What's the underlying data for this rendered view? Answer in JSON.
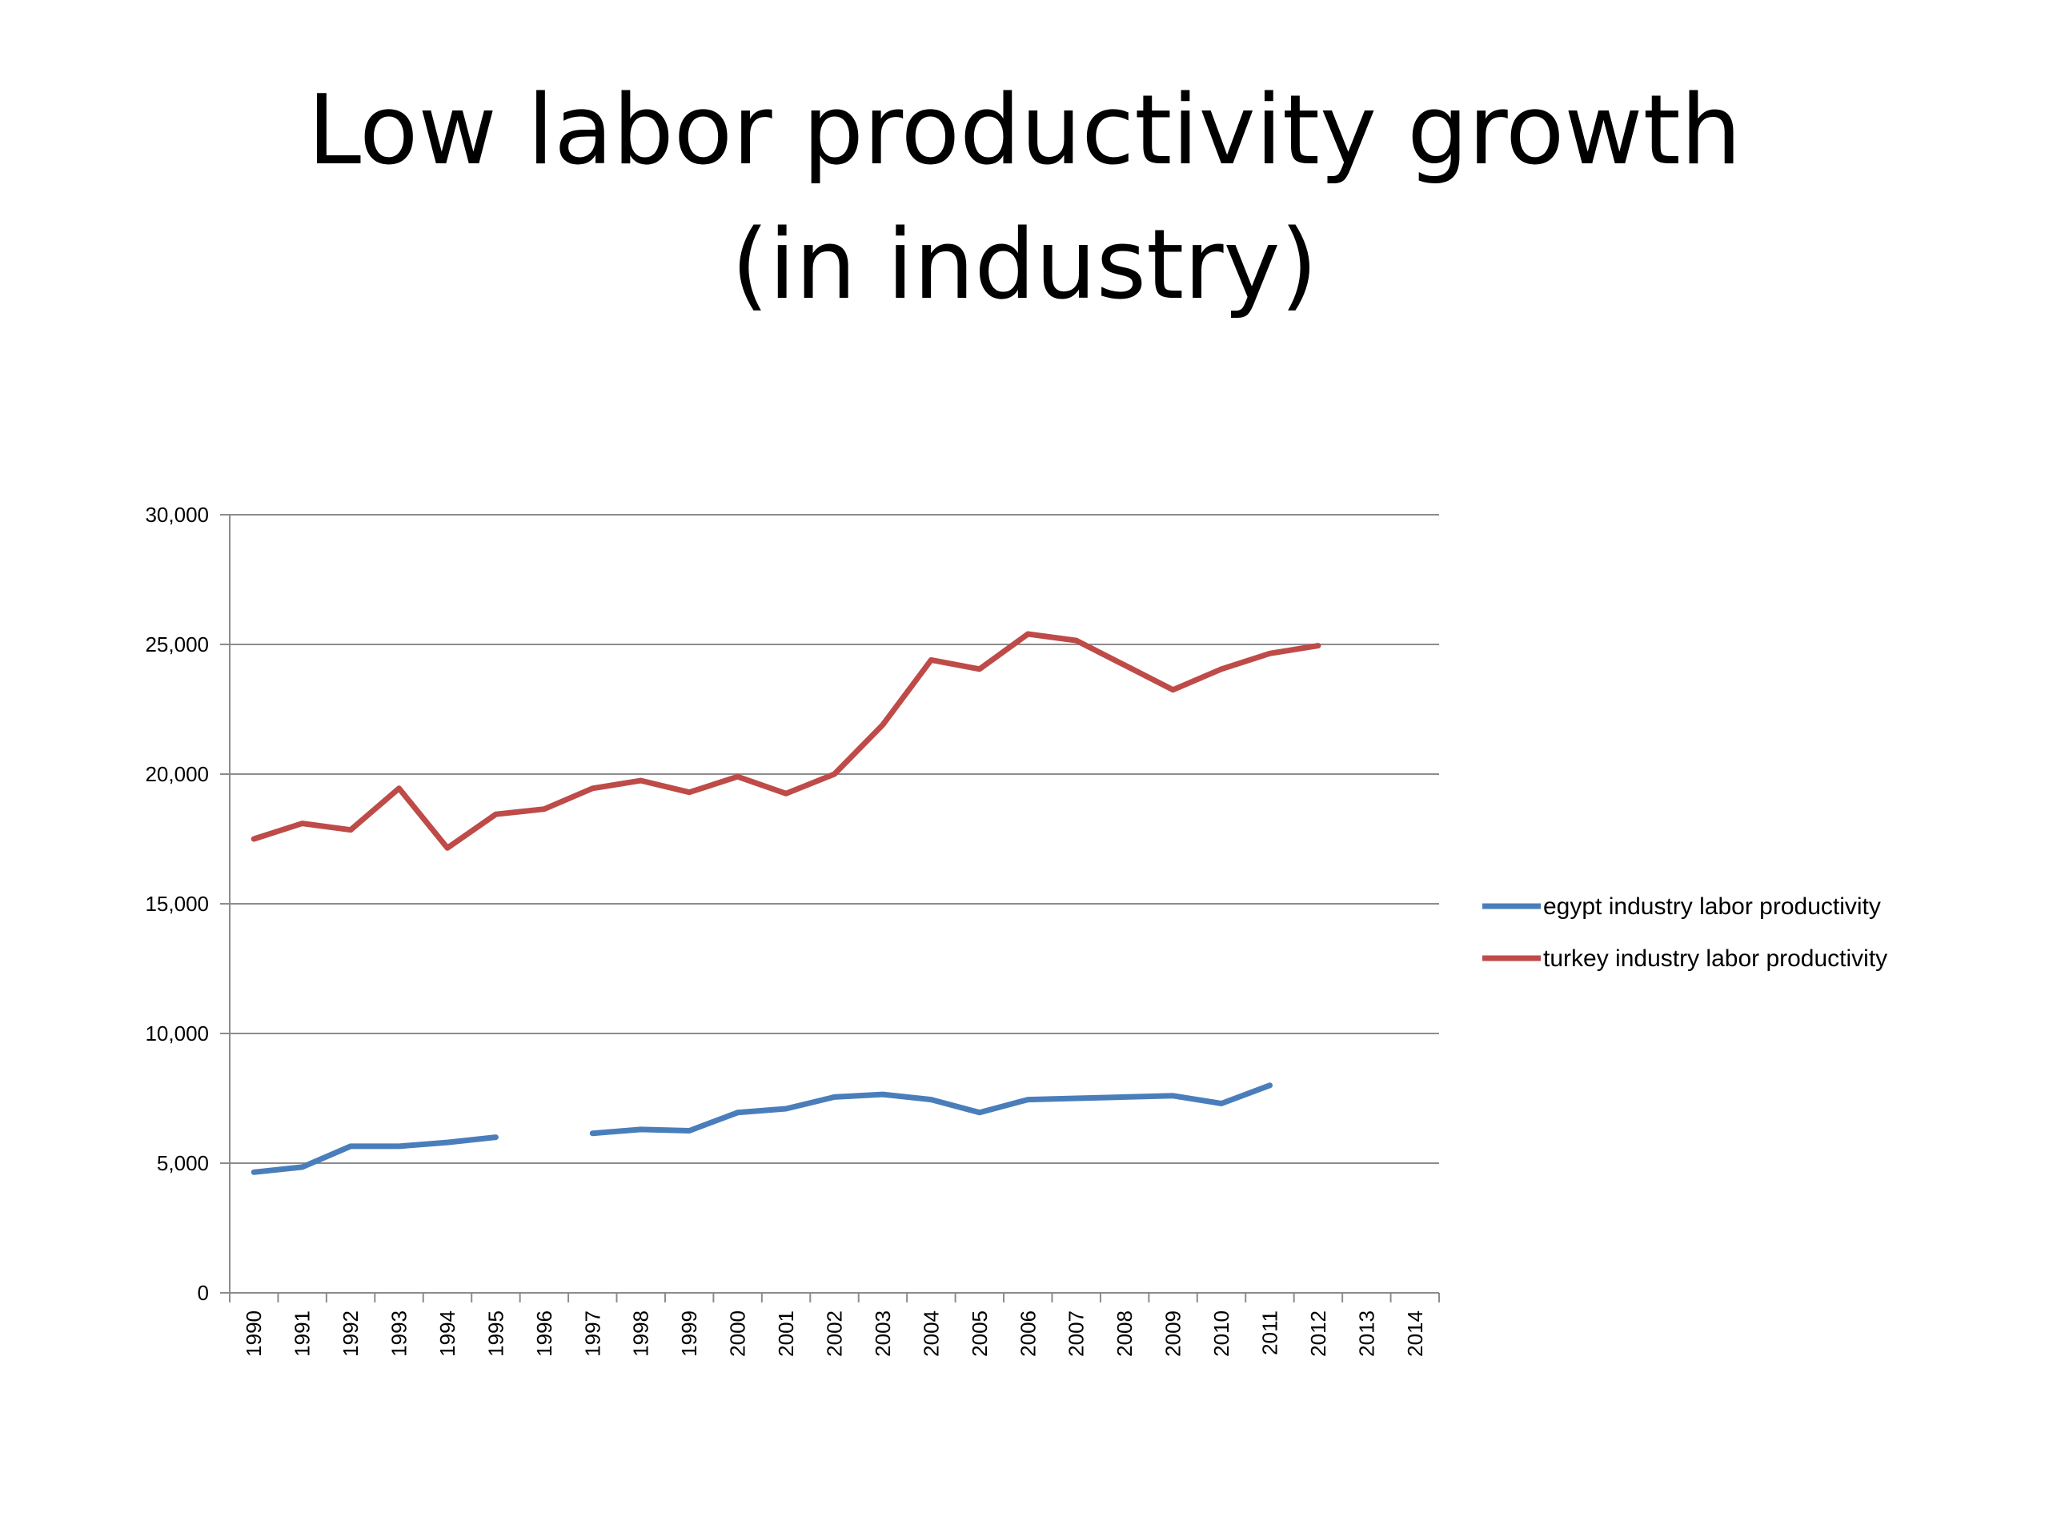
{
  "slide": {
    "title_line1": "Low labor productivity growth",
    "title_line2": "(in industry)"
  },
  "chart_data": {
    "type": "line",
    "title": "",
    "xlabel": "",
    "ylabel": "",
    "ylim": [
      0,
      30000
    ],
    "yticks": [
      0,
      5000,
      10000,
      15000,
      20000,
      25000,
      30000
    ],
    "ytick_labels": [
      "0",
      "5,000",
      "10,000",
      "15,000",
      "20,000",
      "25,000",
      "30,000"
    ],
    "grid": "horizontal",
    "legend_position": "right",
    "categories": [
      "1990",
      "1991",
      "1992",
      "1993",
      "1994",
      "1995",
      "1996",
      "1997",
      "1998",
      "1999",
      "2000",
      "2001",
      "2002",
      "2003",
      "2004",
      "2005",
      "2006",
      "2007",
      "2008",
      "2009",
      "2010",
      "2011",
      "2012",
      "2013",
      "2014"
    ],
    "series": [
      {
        "name": "egypt industry labor productivity",
        "color": "#4a7ebb",
        "values": [
          4650,
          4850,
          5650,
          5650,
          5800,
          6000,
          null,
          6150,
          6300,
          6250,
          6950,
          7100,
          7550,
          7650,
          7450,
          6950,
          7450,
          7500,
          7550,
          7600,
          7300,
          8000,
          null,
          null,
          null
        ]
      },
      {
        "name": "turkey industry labor productivity",
        "color": "#be4b48",
        "values": [
          17500,
          18100,
          17850,
          19450,
          17150,
          18450,
          18650,
          19450,
          19750,
          19300,
          19900,
          19250,
          20000,
          21900,
          24400,
          24050,
          25400,
          25150,
          24200,
          23250,
          24050,
          24650,
          24950,
          null,
          null
        ]
      }
    ]
  }
}
